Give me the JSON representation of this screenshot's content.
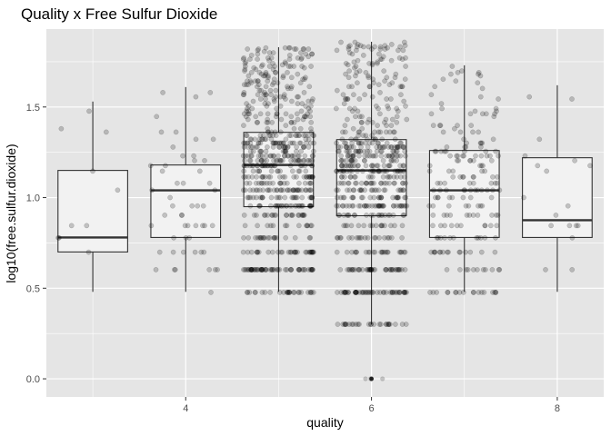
{
  "chart_data": {
    "type": "boxplot",
    "title": "Quality x Free Sulfur Dioxide",
    "xlabel": "quality",
    "ylabel": "log10(free.sulfur.dioxide)",
    "xlim": [
      2.5,
      8.5
    ],
    "ylim": [
      -0.1,
      1.93
    ],
    "x_ticks": [
      4,
      6,
      8
    ],
    "x_tick_labels": [
      "4",
      "6",
      "8"
    ],
    "x_minor_ticks": [
      3,
      5,
      7
    ],
    "y_ticks": [
      0.0,
      0.5,
      1.0,
      1.5
    ],
    "y_tick_labels": [
      "0.0",
      "0.5",
      "1.0",
      "1.5"
    ],
    "y_minor_ticks": [
      0.25,
      0.75,
      1.25,
      1.75
    ],
    "grid": true,
    "panel_background": "#e5e5e5",
    "grid_color": "#ffffff",
    "box_fill": "#f2f2f2",
    "box_line_color": "#333333",
    "point_color": "#000000",
    "point_alpha": 0.2,
    "jitter_width": 0.38,
    "boxes": [
      {
        "quality": 3,
        "lower_whisker": 0.48,
        "q1": 0.7,
        "median": 0.78,
        "q3": 1.15,
        "upper_whisker": 1.53,
        "outliers": [],
        "n_points": 10
      },
      {
        "quality": 4,
        "lower_whisker": 0.48,
        "q1": 0.78,
        "median": 1.04,
        "q3": 1.18,
        "upper_whisker": 1.61,
        "outliers": [],
        "n_points": 53
      },
      {
        "quality": 5,
        "lower_whisker": 0.48,
        "q1": 0.95,
        "median": 1.18,
        "q3": 1.36,
        "upper_whisker": 1.83,
        "outliers": [],
        "n_points": 681
      },
      {
        "quality": 6,
        "lower_whisker": 0.3,
        "q1": 0.9,
        "median": 1.15,
        "q3": 1.32,
        "upper_whisker": 1.86,
        "outliers": [
          0.0
        ],
        "n_points": 638
      },
      {
        "quality": 7,
        "lower_whisker": 0.48,
        "q1": 0.78,
        "median": 1.04,
        "q3": 1.26,
        "upper_whisker": 1.73,
        "outliers": [],
        "n_points": 199
      },
      {
        "quality": 8,
        "lower_whisker": 0.48,
        "q1": 0.78,
        "median": 0.875,
        "q3": 1.22,
        "upper_whisker": 1.62,
        "outliers": [],
        "n_points": 18
      }
    ]
  }
}
